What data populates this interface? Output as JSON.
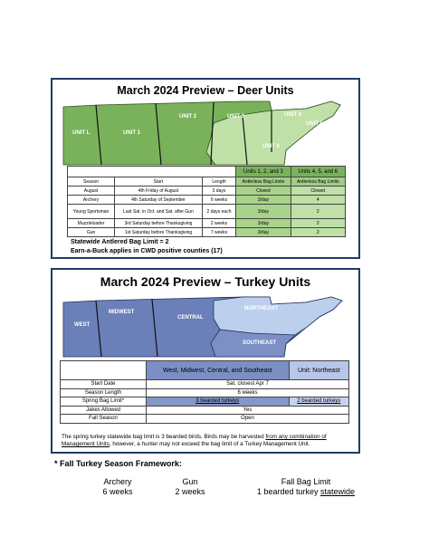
{
  "deer": {
    "title": "March 2024 Preview – Deer Units",
    "map_labels": [
      "UNIT L",
      "UNIT 1",
      "UNIT 2",
      "UNIT 3",
      "UNIT 4",
      "UNIT 5",
      "UNIT 6"
    ],
    "colors": {
      "units_1_3": "#7ab25b",
      "units_4_6": "#bfe0a6"
    },
    "header": {
      "col_season": "Season",
      "col_start": "Start",
      "col_length": "Length",
      "group1": "Units 1, 2, and 3",
      "group2": "Units 4, 5, and 6",
      "sub1": "Antlerless Bag Limits",
      "sub2": "Antlerless Bag Limits"
    },
    "rows": [
      {
        "season": "August",
        "start": "4th Friday of August",
        "length": "3 days",
        "u123": "Closed",
        "u456": "Closed"
      },
      {
        "season": "Archery",
        "start": "4th Saturday of September",
        "length": "6 weeks",
        "u123": "3/day",
        "u456": "4"
      },
      {
        "season": "Young Sportsman",
        "start": "Last Sat. in Oct. and Sat. after Gun",
        "length": "2 days each",
        "u123": "3/day",
        "u456": "2"
      },
      {
        "season": "Muzzleloader",
        "start": "3rd Saturday before Thanksgiving",
        "length": "2 weeks",
        "u123": "3/day",
        "u456": "2"
      },
      {
        "season": "Gun",
        "start": "1st Saturday before Thanksgiving",
        "length": "7 weeks",
        "u123": "3/day",
        "u456": "2"
      }
    ],
    "note1": "Statewide Antlered Bag Limit = 2",
    "note2": "Earn-a-Buck applies in CWD positive counties (17)"
  },
  "turkey": {
    "title": "March 2024 Preview – Turkey Units",
    "map_labels": [
      "WEST",
      "MIDWEST",
      "CENTRAL",
      "NORTHEAST",
      "SOUTHEAST"
    ],
    "colors": {
      "west_group": "#6b7fb8",
      "northeast": "#bcd0ee"
    },
    "header": {
      "group1": "West, Midwest, Central, and Southeast",
      "group2": "Unit: Northeast"
    },
    "rows": [
      {
        "label": "Start Date",
        "value": "Sat. closest Apr 7"
      },
      {
        "label": "Season Length",
        "value": "6 weeks"
      },
      {
        "label": "Spring Bag Limit*",
        "v1": "3 bearded turkeys",
        "v2": "2 bearded turkeys"
      },
      {
        "label": "Jakes Allowed",
        "value": "Yes"
      },
      {
        "label": "Fall Season",
        "value": "Open"
      }
    ],
    "note_a": "The spring turkey statewide bag limit is 3 bearded birds.  Birds may be harvested ",
    "note_b": "from any combination of Management Units",
    "note_c": ", however, a hunter may not exceed the bag limit of a Turkey Management Unit."
  },
  "framework": {
    "title": "* Fall Turkey Season Framework:",
    "col1_head": "Archery",
    "col1_val": "6 weeks",
    "col2_head": "Gun",
    "col2_val": "2 weeks",
    "col3_head": "Fall Bag Limit",
    "col3_val_a": "1 bearded turkey ",
    "col3_val_b": "statewide"
  }
}
